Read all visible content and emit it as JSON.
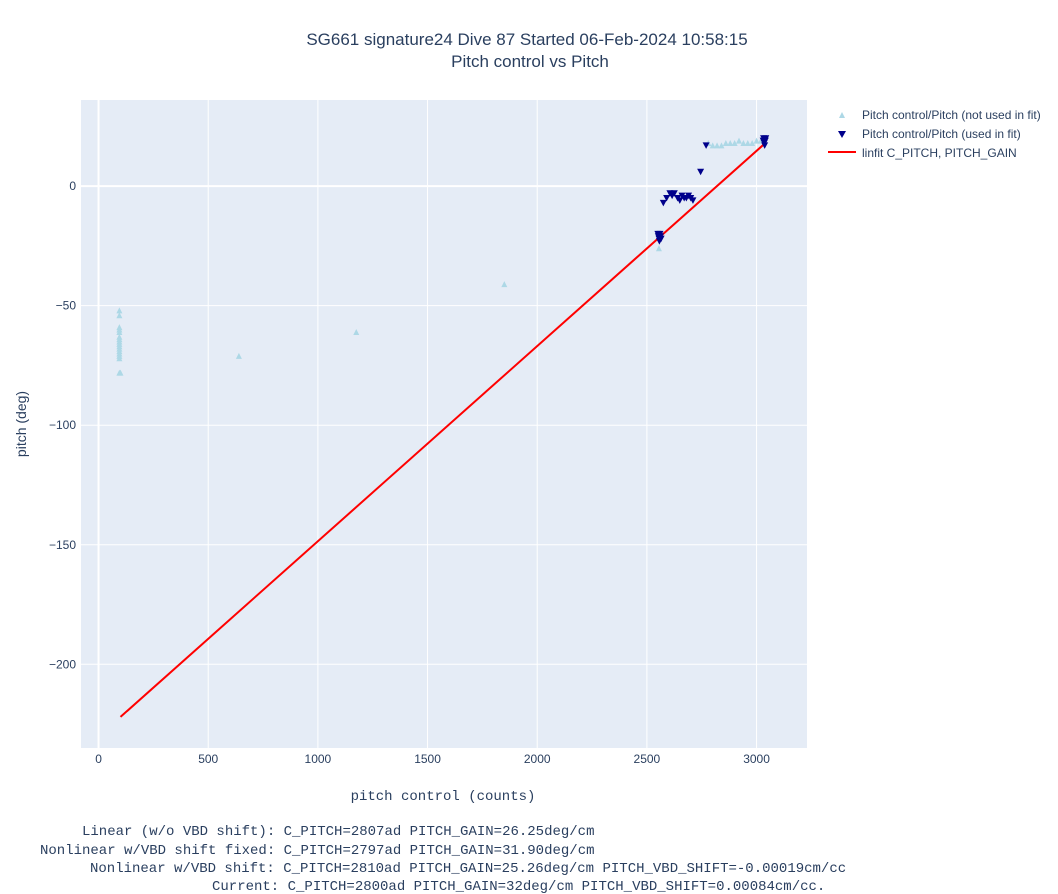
{
  "chart_data": {
    "type": "scatter",
    "title": "SG661 signature24 Dive 87 Started 06-Feb-2024 10:58:15",
    "subtitle": "Pitch control vs Pitch",
    "xlabel": "pitch control (counts)",
    "ylabel": "pitch (deg)",
    "xlim": [
      -80,
      3230
    ],
    "ylim": [
      -235,
      36
    ],
    "xticks": [
      0,
      500,
      1000,
      1500,
      2000,
      2500,
      3000
    ],
    "yticks": [
      0,
      -50,
      -100,
      -150,
      -200
    ],
    "xtick_labels": [
      "0",
      "500",
      "1000",
      "1500",
      "2000",
      "2500",
      "3000"
    ],
    "ytick_labels": [
      "0",
      "−50",
      "−100",
      "−150",
      "−200"
    ],
    "grid": true,
    "legend_position": "top-right, outside plot",
    "colors": {
      "plot_bg": "#e5ecf6",
      "grid": "#ffffff",
      "not_used": "#add8e6",
      "used": "#00008b",
      "fit": "#ff0000"
    },
    "series": [
      {
        "name": "Pitch control/Pitch (not used in fit)",
        "marker": "triangle-up",
        "x": [
          95,
          95,
          95,
          95,
          95,
          95,
          95,
          95,
          95,
          95,
          95,
          95,
          95,
          95,
          95,
          95,
          100,
          640,
          1175,
          1850,
          2555,
          2780,
          2800,
          2820,
          2840,
          2860,
          2880,
          2900,
          2920,
          2940,
          2960,
          2980,
          3000,
          3020
        ],
        "y": [
          -52,
          -54,
          -59,
          -60,
          -61,
          -63,
          -64,
          -65,
          -66,
          -67,
          -68,
          -69,
          -70,
          -71,
          -72,
          -78,
          -78,
          -71,
          -61,
          -41,
          -26,
          18,
          17,
          17,
          17,
          18,
          18,
          18,
          19,
          18,
          18,
          18,
          19,
          19
        ]
      },
      {
        "name": "Pitch control/Pitch (used in fit)",
        "marker": "triangle-down",
        "x": [
          2550,
          2552,
          2555,
          2557,
          2560,
          2562,
          2565,
          2575,
          2590,
          2605,
          2615,
          2625,
          2640,
          2650,
          2660,
          2670,
          2680,
          2690,
          2700,
          2710,
          2745,
          2770,
          3030,
          3032,
          3035,
          3037,
          3040,
          3042
        ],
        "y": [
          -20,
          -21,
          -22,
          -23,
          -20,
          -21,
          -22,
          -7,
          -5,
          -3,
          -4,
          -3,
          -5,
          -6,
          -4,
          -5,
          -5,
          -4,
          -5,
          -6,
          6,
          17,
          19,
          20,
          18,
          17,
          19,
          20
        ]
      },
      {
        "name": "linfit C_PITCH, PITCH_GAIN",
        "type": "line",
        "x": [
          100,
          3040
        ],
        "y": [
          -222,
          18
        ]
      }
    ]
  },
  "annotations": [
    "Linear (w/o VBD shift): C_PITCH=2807ad PITCH_GAIN=26.25deg/cm",
    "Nonlinear w/VBD shift fixed: C_PITCH=2797ad PITCH_GAIN=31.90deg/cm",
    "Nonlinear w/VBD shift: C_PITCH=2810ad PITCH_GAIN=25.26deg/cm PITCH_VBD_SHIFT=-0.00019cm/cc",
    "Current: C_PITCH=2800ad PITCH_GAIN=32deg/cm PITCH_VBD_SHIFT=0.00084cm/cc."
  ]
}
